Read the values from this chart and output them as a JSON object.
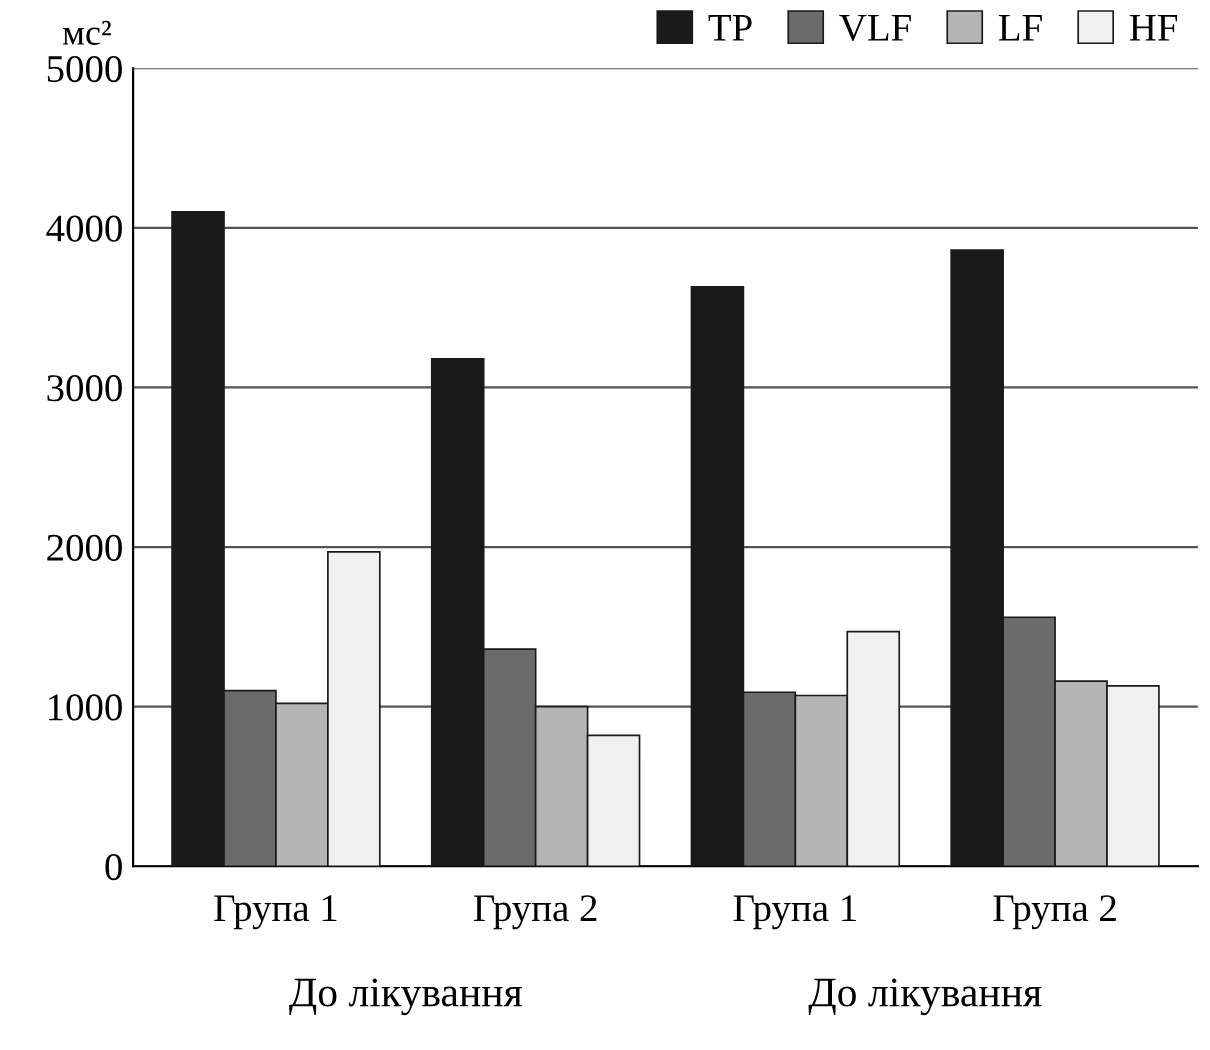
{
  "chart_data": {
    "type": "bar",
    "ylabel": "мс²",
    "categories": [
      "Група 1",
      "Група 2",
      "Група 1",
      "Група 2"
    ],
    "series": [
      {
        "name": "TP",
        "color": "#1a1a1a",
        "values": [
          4100,
          3180,
          3630,
          3860
        ]
      },
      {
        "name": "VLF",
        "color": "#6b6b6b",
        "values": [
          1100,
          1360,
          1090,
          1560
        ]
      },
      {
        "name": "LF",
        "color": "#b5b5b5",
        "values": [
          1020,
          1000,
          1070,
          1160
        ]
      },
      {
        "name": "HF",
        "color": "#f0f0f0",
        "values": [
          1970,
          820,
          1470,
          1130
        ]
      }
    ],
    "ylim": [
      0,
      5000
    ],
    "yticks": [
      0,
      1000,
      2000,
      3000,
      4000,
      5000
    ],
    "grid": "y",
    "legend": "top right",
    "annotations": [
      "До лікування",
      "До лікування"
    ]
  }
}
